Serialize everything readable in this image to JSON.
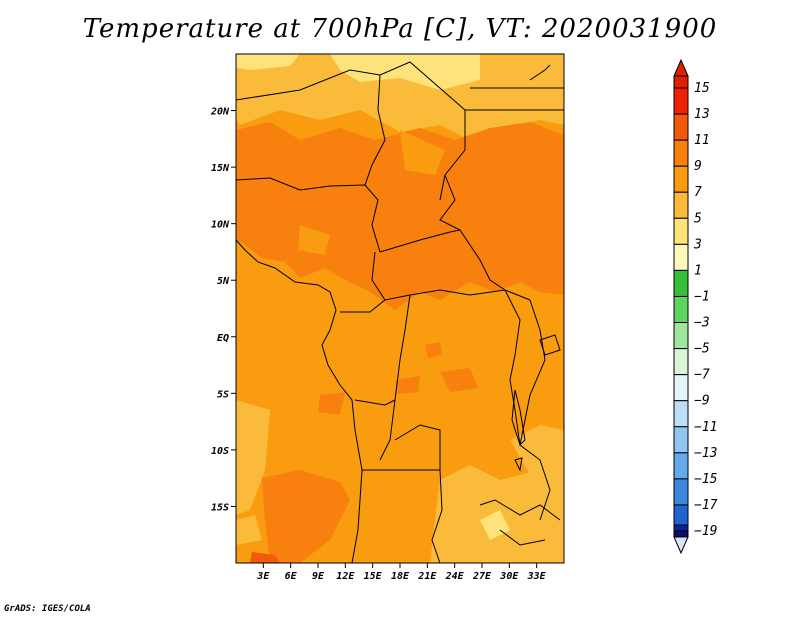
{
  "title": "Temperature at 700hPa [C], VT: 2020031900",
  "credit": "GrADS: IGES/COLA",
  "map": {
    "lon_range": [
      0,
      36
    ],
    "lat_range": [
      -20,
      25
    ],
    "lat_ticks": [
      {
        "value": 20,
        "label": "20N"
      },
      {
        "value": 15,
        "label": "15N"
      },
      {
        "value": 10,
        "label": "10N"
      },
      {
        "value": 5,
        "label": "5N"
      },
      {
        "value": 0,
        "label": "EQ"
      },
      {
        "value": -5,
        "label": "5S"
      },
      {
        "value": -10,
        "label": "10S"
      },
      {
        "value": -15,
        "label": "15S"
      }
    ],
    "lon_ticks": [
      {
        "value": 3,
        "label": "3E"
      },
      {
        "value": 6,
        "label": "6E"
      },
      {
        "value": 9,
        "label": "9E"
      },
      {
        "value": 12,
        "label": "12E"
      },
      {
        "value": 15,
        "label": "15E"
      },
      {
        "value": 18,
        "label": "18E"
      },
      {
        "value": 21,
        "label": "21E"
      },
      {
        "value": 24,
        "label": "24E"
      },
      {
        "value": 27,
        "label": "27E"
      },
      {
        "value": 30,
        "label": "30E"
      },
      {
        "value": 33,
        "label": "33E"
      }
    ]
  },
  "colorbar": {
    "levels": [
      {
        "label": "15",
        "color": "#ee2200"
      },
      {
        "label": "13",
        "color": "#f25a0a"
      },
      {
        "label": "11",
        "color": "#f7800f"
      },
      {
        "label": "9",
        "color": "#f99c10"
      },
      {
        "label": "7",
        "color": "#fbbb3a"
      },
      {
        "label": "5",
        "color": "#fde37a"
      },
      {
        "label": "3",
        "color": "#fdf7b8"
      },
      {
        "label": "1",
        "color": "#37c037"
      },
      {
        "label": "-1",
        "color": "#5ed65e"
      },
      {
        "label": "-3",
        "color": "#9ee79e"
      },
      {
        "label": "-5",
        "color": "#d8f5d8"
      },
      {
        "label": "-7",
        "color": "#e4f4fb"
      },
      {
        "label": "-9",
        "color": "#bcdff7"
      },
      {
        "label": "-11",
        "color": "#90c6f2"
      },
      {
        "label": "-13",
        "color": "#64a9ea"
      },
      {
        "label": "-15",
        "color": "#3c88df"
      },
      {
        "label": "-17",
        "color": "#1f64cf"
      },
      {
        "label": "-19",
        "color": "#0f44b6"
      }
    ],
    "top_color": "#e02000",
    "bottom_colors": [
      "#0a2596",
      "#0a0f6e"
    ],
    "under_color": "#d8e4f7"
  }
}
